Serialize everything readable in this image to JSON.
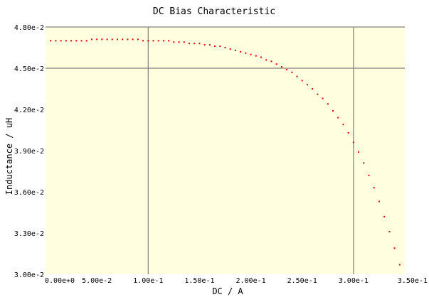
{
  "chart_data": {
    "type": "scatter",
    "title": "DC Bias Characteristic",
    "xlabel": "DC / A",
    "ylabel": "Inductance / uH",
    "xlim": [
      0,
      0.35
    ],
    "ylim": [
      0.03,
      0.048
    ],
    "x_ticks": [
      0,
      0.05,
      0.1,
      0.15,
      0.2,
      0.25,
      0.3,
      0.35
    ],
    "x_tick_labels": [
      "0.00e+0",
      "5.00e-2",
      "1.00e-1",
      "1.50e-1",
      "2.00e-1",
      "2.50e-1",
      "3.00e-1",
      "3.50e-1"
    ],
    "y_ticks": [
      0.03,
      0.033,
      0.036,
      0.039,
      0.042,
      0.045,
      0.048
    ],
    "y_tick_labels": [
      "3.00e-2",
      "3.30e-2",
      "3.60e-2",
      "3.90e-2",
      "4.20e-2",
      "4.50e-2",
      "4.80e-2"
    ],
    "grid_x": [
      0.1,
      0.3
    ],
    "grid_y": [
      0.045,
      0.048
    ],
    "colors": {
      "plot_background": "#ffffe0",
      "series": "#e00000",
      "grid": "#808080"
    },
    "series": [
      {
        "x": [
          0.005,
          0.01,
          0.015,
          0.02,
          0.025,
          0.03,
          0.035,
          0.04,
          0.045,
          0.05,
          0.055,
          0.06,
          0.065,
          0.07,
          0.075,
          0.08,
          0.085,
          0.09,
          0.095,
          0.1,
          0.105,
          0.11,
          0.115,
          0.12,
          0.125,
          0.13,
          0.135,
          0.14,
          0.145,
          0.15,
          0.155,
          0.16,
          0.165,
          0.17,
          0.175,
          0.18,
          0.185,
          0.19,
          0.195,
          0.2,
          0.205,
          0.21,
          0.215,
          0.22,
          0.225,
          0.23,
          0.235,
          0.24,
          0.245,
          0.25,
          0.255,
          0.26,
          0.265,
          0.27,
          0.275,
          0.28,
          0.285,
          0.29,
          0.295,
          0.3,
          0.305,
          0.31,
          0.315,
          0.32,
          0.325,
          0.33,
          0.335,
          0.34,
          0.345
        ],
        "y": [
          0.047,
          0.047,
          0.047,
          0.047,
          0.047,
          0.047,
          0.047,
          0.047,
          0.0471,
          0.0471,
          0.0471,
          0.0471,
          0.0471,
          0.0471,
          0.0471,
          0.0471,
          0.0471,
          0.0471,
          0.047,
          0.047,
          0.047,
          0.047,
          0.047,
          0.047,
          0.0469,
          0.0469,
          0.0469,
          0.0468,
          0.0468,
          0.0468,
          0.0467,
          0.0467,
          0.0466,
          0.0466,
          0.0465,
          0.0464,
          0.0463,
          0.0462,
          0.0461,
          0.046,
          0.0459,
          0.0458,
          0.0456,
          0.0455,
          0.0453,
          0.0451,
          0.0449,
          0.0447,
          0.0444,
          0.0441,
          0.0438,
          0.0435,
          0.0431,
          0.0428,
          0.0424,
          0.0419,
          0.0414,
          0.0409,
          0.0403,
          0.0396,
          0.0389,
          0.0381,
          0.0372,
          0.0363,
          0.0353,
          0.0342,
          0.0331,
          0.0319,
          0.0307
        ]
      }
    ]
  }
}
